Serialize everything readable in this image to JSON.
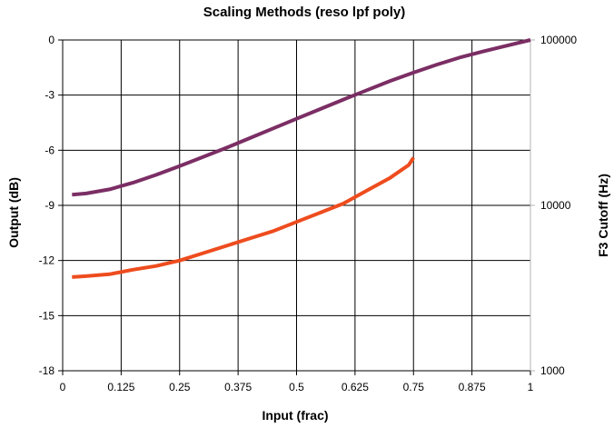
{
  "chart_data": {
    "type": "line",
    "title": "Scaling Methods (reso lpf poly)",
    "xlabel": "Input (frac)",
    "ylabel": "Output (dB)",
    "y2label": "F3 Cutoff (Hz)",
    "xlim": [
      0,
      1
    ],
    "ylim": [
      -18,
      0
    ],
    "y2lim": [
      1000,
      100000
    ],
    "y2scale": "log",
    "grid": true,
    "x_ticks": [
      "0",
      "0.125",
      "0.25",
      "0.375",
      "0.5",
      "0.625",
      "0.75",
      "0.875",
      "1"
    ],
    "y_ticks": [
      "0",
      "-3",
      "-6",
      "-9",
      "-12",
      "-15",
      "-18"
    ],
    "y2_ticks": [
      "100000",
      "10000",
      "1000"
    ],
    "series": [
      {
        "axis": "y2",
        "color": "#7b2e64",
        "x": [
          0.02,
          0.05,
          0.1,
          0.15,
          0.2,
          0.25,
          0.3,
          0.35,
          0.4,
          0.45,
          0.5,
          0.55,
          0.6,
          0.65,
          0.7,
          0.75,
          0.8,
          0.85,
          0.9,
          0.95,
          1.0
        ],
        "values": [
          11600,
          11800,
          12500,
          13700,
          15300,
          17300,
          19600,
          22300,
          25500,
          29200,
          33400,
          38200,
          43600,
          49700,
          56500,
          63500,
          71000,
          78500,
          85500,
          92500,
          100000
        ]
      },
      {
        "axis": "y",
        "color": "#ee4c1e",
        "x": [
          0.02,
          0.05,
          0.1,
          0.15,
          0.2,
          0.25,
          0.3,
          0.35,
          0.4,
          0.45,
          0.5,
          0.55,
          0.6,
          0.65,
          0.7,
          0.74,
          0.75
        ],
        "values": [
          -12.9,
          -12.85,
          -12.75,
          -12.5,
          -12.3,
          -12.0,
          -11.6,
          -11.2,
          -10.8,
          -10.4,
          -9.9,
          -9.4,
          -8.9,
          -8.2,
          -7.5,
          -6.8,
          -6.4
        ]
      }
    ]
  }
}
